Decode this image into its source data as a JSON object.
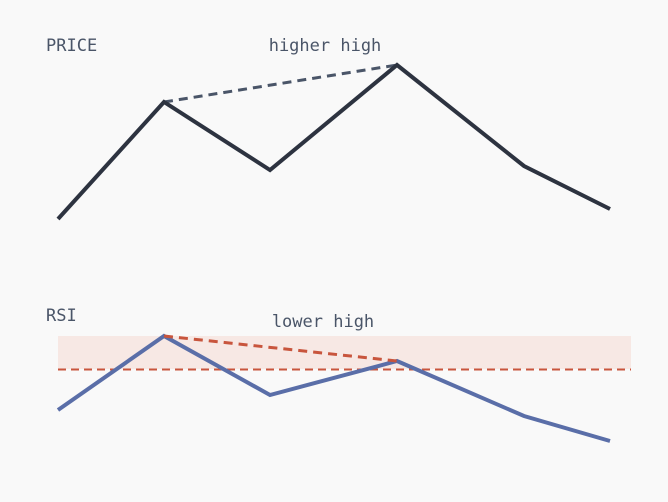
{
  "panels": [
    {
      "label": "PRICE",
      "annotation": "higher high"
    },
    {
      "label": "RSI",
      "annotation": "lower high"
    }
  ]
}
